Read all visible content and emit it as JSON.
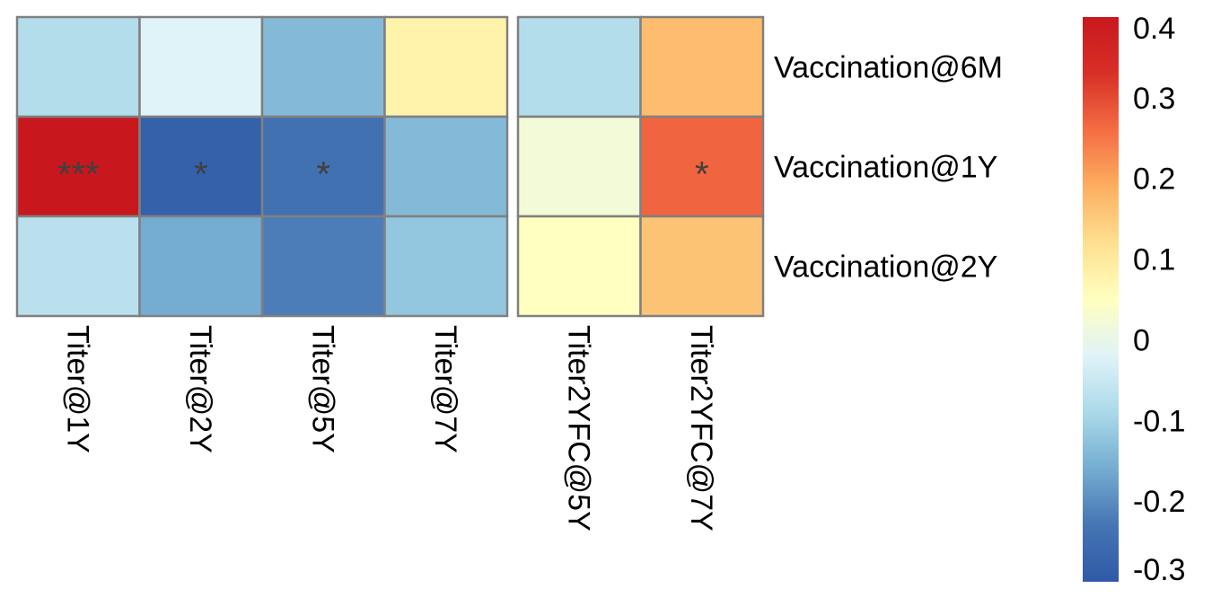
{
  "chart_data": {
    "type": "heatmap",
    "title": "",
    "rows": [
      "Vaccination@6M",
      "Vaccination@1Y",
      "Vaccination@2Y"
    ],
    "column_groups": [
      {
        "columns": [
          "Titer@1Y",
          "Titer@2Y",
          "Titer@5Y",
          "Titer@7Y"
        ],
        "values": [
          [
            -0.08,
            -0.02,
            -0.14,
            0.08
          ],
          [
            0.4,
            -0.28,
            -0.24,
            -0.14
          ],
          [
            -0.07,
            -0.16,
            -0.22,
            -0.12
          ]
        ],
        "annotations": [
          [
            "",
            "",
            "",
            ""
          ],
          [
            "***",
            "*",
            "*",
            ""
          ],
          [
            "",
            "",
            "",
            ""
          ]
        ]
      },
      {
        "columns": [
          "Titer2YFC@5Y",
          "Titer2YFC@7Y"
        ],
        "values": [
          [
            -0.08,
            0.17
          ],
          [
            0.02,
            0.27
          ],
          [
            0.05,
            0.16
          ]
        ],
        "annotations": [
          [
            "",
            ""
          ],
          [
            "",
            "*"
          ],
          [
            "",
            ""
          ]
        ]
      }
    ],
    "colorbar": {
      "range": [
        -0.3,
        0.4
      ],
      "ticks": [
        0.4,
        0.3,
        0.2,
        0.1,
        0,
        -0.1,
        -0.2,
        -0.3
      ],
      "tick_labels": [
        "0.4",
        "0.3",
        "0.2",
        "0.1",
        "0",
        "-0.1",
        "-0.2",
        "-0.3"
      ],
      "colors": [
        "#2F59A6",
        "#4575B4",
        "#74ADD1",
        "#ABD9E9",
        "#E0F3F8",
        "#FFFFBF",
        "#FEE090",
        "#FDAE61",
        "#F46D43",
        "#D73027",
        "#C8181E"
      ]
    },
    "cell_border_color": "#808080",
    "annotation_color": "#404040"
  }
}
